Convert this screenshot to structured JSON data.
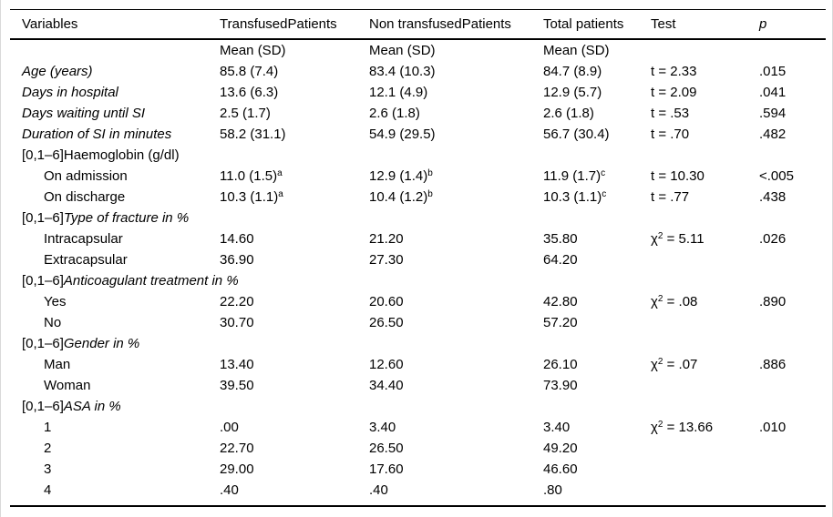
{
  "table": {
    "columns": [
      "Variables",
      "TransfusedPatients",
      "Non transfusedPatients",
      "Total patients",
      "Test",
      "p"
    ],
    "rows": [
      {
        "label": "",
        "italic": false,
        "indent": false,
        "cells": [
          "Mean (SD)",
          "Mean (SD)",
          "Mean (SD)",
          "",
          ""
        ]
      },
      {
        "label": "Age (years)",
        "italic": true,
        "indent": false,
        "cells": [
          "85.8 (7.4)",
          "83.4 (10.3)",
          "84.7 (8.9)",
          "t = 2.33",
          ".015"
        ]
      },
      {
        "label": "Days in hospital",
        "italic": true,
        "indent": false,
        "cells": [
          "13.6 (6.3)",
          "12.1 (4.9)",
          "12.9 (5.7)",
          "t = 2.09",
          ".041"
        ]
      },
      {
        "label": "Days waiting until SI",
        "italic": true,
        "indent": false,
        "cells": [
          "2.5 (1.7)",
          "2.6 (1.8)",
          "2.6 (1.8)",
          "t = .53",
          ".594"
        ]
      },
      {
        "label": "Duration of SI in minutes",
        "italic": true,
        "indent": false,
        "cells": [
          "58.2 (31.1)",
          "54.9 (29.5)",
          "56.7 (30.4)",
          "t = .70",
          ".482"
        ]
      },
      {
        "prefix": "[0,1–6]",
        "label": "Haemoglobin (g/dl)",
        "italic": false,
        "indent": false,
        "cells": [
          "",
          "",
          "",
          "",
          ""
        ]
      },
      {
        "label": "On admission",
        "italic": false,
        "indent": true,
        "cells": [
          "11.0 (1.5)^a",
          "12.9 (1.4)^b",
          "11.9 (1.7)^c",
          "t = 10.30",
          "<.005"
        ]
      },
      {
        "label": "On discharge",
        "italic": false,
        "indent": true,
        "cells": [
          "10.3 (1.1)^a",
          "10.4 (1.2)^b",
          "10.3 (1.1)^c",
          "t = .77",
          ".438"
        ]
      },
      {
        "prefix": "[0,1–6]",
        "label": "Type of fracture in %",
        "italic": true,
        "indent": false,
        "cells": [
          "",
          "",
          "",
          "",
          ""
        ]
      },
      {
        "label": "Intracapsular",
        "italic": false,
        "indent": true,
        "cells": [
          "14.60",
          "21.20",
          "35.80",
          "χ^2 = 5.11",
          ".026"
        ]
      },
      {
        "label": "Extracapsular",
        "italic": false,
        "indent": true,
        "cells": [
          "36.90",
          "27.30",
          "64.20",
          "",
          ""
        ]
      },
      {
        "prefix": "[0,1–6]",
        "label": "Anticoagulant treatment in %",
        "italic": true,
        "indent": false,
        "cells": [
          "",
          "",
          "",
          "",
          ""
        ]
      },
      {
        "label": "Yes",
        "italic": false,
        "indent": true,
        "cells": [
          "22.20",
          "20.60",
          "42.80",
          "χ^2 = .08",
          ".890"
        ]
      },
      {
        "label": "No",
        "italic": false,
        "indent": true,
        "cells": [
          "30.70",
          "26.50",
          "57.20",
          "",
          ""
        ]
      },
      {
        "prefix": "[0,1–6]",
        "label": "Gender in %",
        "italic": true,
        "indent": false,
        "cells": [
          "",
          "",
          "",
          "",
          ""
        ]
      },
      {
        "label": "Man",
        "italic": false,
        "indent": true,
        "cells": [
          "13.40",
          "12.60",
          "26.10",
          "χ^2 = .07",
          ".886"
        ]
      },
      {
        "label": "Woman",
        "italic": false,
        "indent": true,
        "cells": [
          "39.50",
          "34.40",
          "73.90",
          "",
          ""
        ]
      },
      {
        "prefix": "[0,1–6]",
        "label": "ASA in %",
        "italic": true,
        "indent": false,
        "cells": [
          "",
          "",
          "",
          "",
          ""
        ]
      },
      {
        "label": "1",
        "italic": false,
        "indent": true,
        "cells": [
          ".00",
          "3.40",
          "3.40",
          "χ^2 = 13.66",
          ".010"
        ]
      },
      {
        "label": "2",
        "italic": false,
        "indent": true,
        "cells": [
          "22.70",
          "26.50",
          "49.20",
          "",
          ""
        ]
      },
      {
        "label": "3",
        "italic": false,
        "indent": true,
        "cells": [
          "29.00",
          "17.60",
          "46.60",
          "",
          ""
        ]
      },
      {
        "label": "4",
        "italic": false,
        "indent": true,
        "cells": [
          ".40",
          ".40",
          ".80",
          "",
          ""
        ]
      }
    ]
  }
}
